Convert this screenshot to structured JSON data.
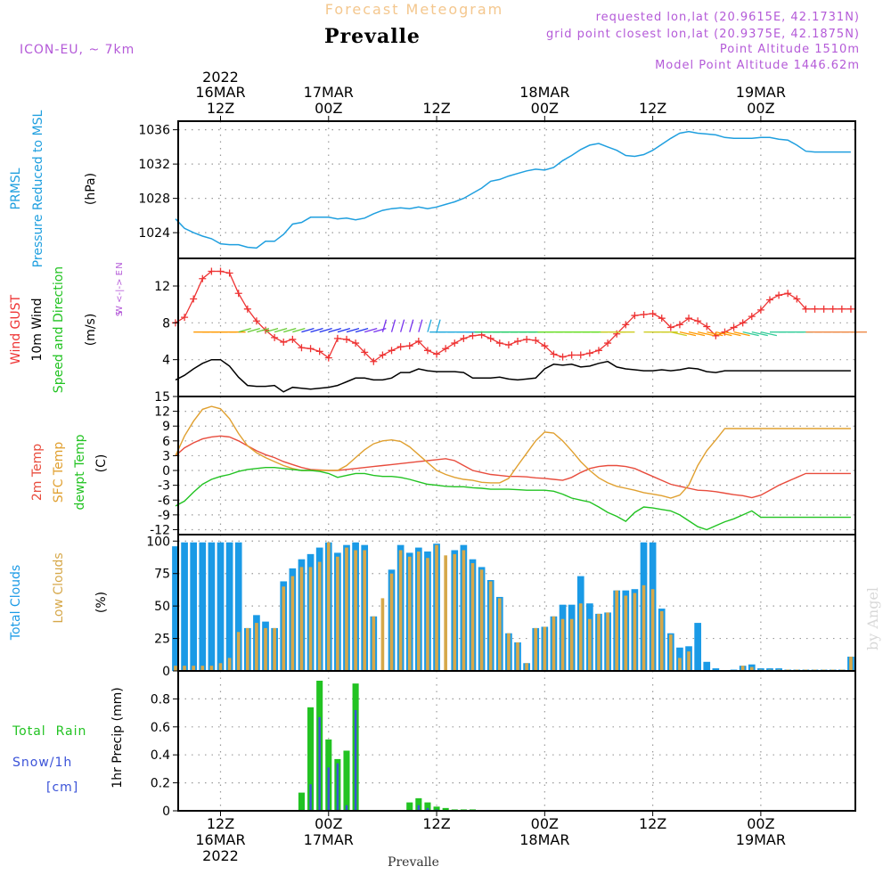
{
  "header": {
    "subtitle": "Forecast Meteogram",
    "title": "Prevalle",
    "model": "ICON-EU, ~ 7km",
    "requested": "requested lon,lat (20.9615E, 42.1731N)",
    "gridpoint": "grid point closest lon,lat (20.9375E, 42.1875N)",
    "altitude": "Point Altitude 1510m",
    "model_altitude": "Model Point Altitude 1446.62m",
    "footer": "Prevalle",
    "credit": "by Angel"
  },
  "colors": {
    "pressure": "#1f9fdf",
    "gust": "#ee3333",
    "wind": "#000000",
    "temp2m": "#e84c3d",
    "sfc": "#e0a030",
    "dewpt": "#22c322",
    "total_clouds": "#1a9ae6",
    "low_clouds": "#d6a84a",
    "rain": "#22c322",
    "snow": "#3a52d8",
    "label_purple": "#b45ad8"
  },
  "time_axis": {
    "top": [
      {
        "t": 12,
        "line1": "2022",
        "line2": "16MAR",
        "line3": "12Z"
      },
      {
        "t": 24,
        "line1": "",
        "line2": "17MAR",
        "line3": "00Z"
      },
      {
        "t": 36,
        "line1": "",
        "line2": "",
        "line3": "12Z"
      },
      {
        "t": 48,
        "line1": "",
        "line2": "18MAR",
        "line3": "00Z"
      },
      {
        "t": 60,
        "line1": "",
        "line2": "",
        "line3": "12Z"
      },
      {
        "t": 72,
        "line1": "",
        "line2": "19MAR",
        "line3": "00Z"
      }
    ],
    "bottom": [
      {
        "t": 12,
        "line1": "12Z",
        "line2": "16MAR",
        "line3": "2022"
      },
      {
        "t": 24,
        "line1": "00Z",
        "line2": "17MAR",
        "line3": ""
      },
      {
        "t": 36,
        "line1": "12Z",
        "line2": "",
        "line3": ""
      },
      {
        "t": 48,
        "line1": "00Z",
        "line2": "18MAR",
        "line3": ""
      },
      {
        "t": 60,
        "line1": "12Z",
        "line2": "",
        "line3": ""
      },
      {
        "t": 72,
        "line1": "00Z",
        "line2": "19MAR",
        "line3": ""
      }
    ]
  },
  "panel_labels": {
    "pressure": {
      "l1": "PRMSL",
      "l2": "Pressure Reduced to MSL",
      "unit": "(hPa)"
    },
    "wind": {
      "l1": "Wind GUST",
      "l2": "10m Wind",
      "l3": "Speed and Direction",
      "unit": "(m/s)",
      "compass": "W <-|-> E",
      "north": "N",
      "south": "S"
    },
    "temp": {
      "l1": "2m Temp",
      "l2": "SFC Temp",
      "l3": "dewpt Temp",
      "unit": "(C)"
    },
    "clouds": {
      "l1": "Total Clouds",
      "l2": "Low Clouds",
      "unit": "(%)"
    },
    "precip": {
      "l1": "Total  Rain",
      "l2": "Snow/1h",
      "l3": "[cm]",
      "unit": "1hr Precip (mm)"
    }
  },
  "chart_data": [
    {
      "type": "line",
      "name": "pressure",
      "ylim": [
        1021,
        1037
      ],
      "yticks": [
        1024,
        1028,
        1032,
        1036
      ],
      "x": [
        7,
        8,
        9,
        10,
        11,
        12,
        13,
        14,
        15,
        16,
        17,
        18,
        19,
        20,
        21,
        22,
        23,
        24,
        25,
        26,
        27,
        28,
        29,
        30,
        31,
        32,
        33,
        34,
        35,
        36,
        37,
        38,
        39,
        40,
        41,
        42,
        43,
        44,
        45,
        46,
        47,
        48,
        49,
        50,
        51,
        52,
        53,
        54,
        55,
        56,
        57,
        58,
        59,
        60,
        61,
        62,
        63,
        64,
        65,
        66,
        67,
        68,
        69,
        70,
        71,
        72,
        73,
        74,
        75,
        76,
        77,
        78,
        79,
        80,
        81,
        82
      ],
      "series": [
        {
          "values": [
            1025.6,
            1024.5,
            1024.0,
            1023.6,
            1023.3,
            1022.7,
            1022.6,
            1022.6,
            1022.3,
            1022.2,
            1023.0,
            1023.0,
            1023.8,
            1025.0,
            1025.2,
            1025.8,
            1025.8,
            1025.8,
            1025.6,
            1025.7,
            1025.5,
            1025.7,
            1026.2,
            1026.6,
            1026.8,
            1026.9,
            1026.8,
            1027.0,
            1026.8,
            1027.0,
            1027.3,
            1027.6,
            1028.0,
            1028.6,
            1029.2,
            1030.0,
            1030.2,
            1030.6,
            1030.9,
            1031.2,
            1031.4,
            1031.3,
            1031.6,
            1032.4,
            1033.0,
            1033.7,
            1034.2,
            1034.4,
            1034.0,
            1033.6,
            1033.0,
            1032.9,
            1033.1,
            1033.6,
            1034.3,
            1035.0,
            1035.6,
            1035.8,
            1035.6,
            1035.5,
            1035.4,
            1035.1,
            1035.0,
            1035.0,
            1035.0,
            1035.1,
            1035.1,
            1034.9,
            1034.8,
            1034.2,
            1033.5,
            1033.4,
            1033.4,
            1033.4,
            1033.4,
            1033.4
          ]
        }
      ]
    },
    {
      "type": "line",
      "name": "wind",
      "ylim": [
        0,
        15
      ],
      "yticks": [
        4,
        8,
        12
      ],
      "x": [
        7,
        8,
        9,
        10,
        11,
        12,
        13,
        14,
        15,
        16,
        17,
        18,
        19,
        20,
        21,
        22,
        23,
        24,
        25,
        26,
        27,
        28,
        29,
        30,
        31,
        32,
        33,
        34,
        35,
        36,
        37,
        38,
        39,
        40,
        41,
        42,
        43,
        44,
        45,
        46,
        47,
        48,
        49,
        50,
        51,
        52,
        53,
        54,
        55,
        56,
        57,
        58,
        59,
        60,
        61,
        62,
        63,
        64,
        65,
        66,
        67,
        68,
        69,
        70,
        71,
        72,
        73,
        74,
        75,
        76,
        77,
        78,
        79,
        80,
        81,
        82
      ],
      "series": [
        {
          "values": [
            8.0,
            8.6,
            10.6,
            12.8,
            13.6,
            13.6,
            13.4,
            11.2,
            9.5,
            8.2,
            7.2,
            6.4,
            5.9,
            6.2,
            5.3,
            5.2,
            4.9,
            4.2,
            6.3,
            6.2,
            5.8,
            4.8,
            3.8,
            4.5,
            5.0,
            5.4,
            5.5,
            6.0,
            5.0,
            4.6,
            5.2,
            5.8,
            6.3,
            6.6,
            6.7,
            6.3,
            5.8,
            5.6,
            6.0,
            6.2,
            6.1,
            5.5,
            4.6,
            4.3,
            4.5,
            4.5,
            4.7,
            5.0,
            5.8,
            6.8,
            7.8,
            8.8,
            8.9,
            9.0,
            8.5,
            7.5,
            7.8,
            8.5,
            8.2,
            7.6,
            6.6,
            7.0,
            7.5,
            8.0,
            8.7,
            9.4,
            10.5,
            11.0,
            11.2,
            10.6,
            9.5,
            9.5,
            9.5,
            9.5,
            9.5,
            9.5
          ]
        },
        {
          "values": [
            1.8,
            2.3,
            3.0,
            3.6,
            4.0,
            4.0,
            3.3,
            2.1,
            1.2,
            1.1,
            1.1,
            1.2,
            0.5,
            1.0,
            0.9,
            0.8,
            0.9,
            1.0,
            1.2,
            1.6,
            2.0,
            2.0,
            1.8,
            1.8,
            2.0,
            2.6,
            2.6,
            3.0,
            2.8,
            2.7,
            2.7,
            2.7,
            2.6,
            2.0,
            2.0,
            2.0,
            2.1,
            1.9,
            1.8,
            1.9,
            2.0,
            3.0,
            3.5,
            3.4,
            3.5,
            3.2,
            3.3,
            3.6,
            3.8,
            3.2,
            3.0,
            2.9,
            2.8,
            2.8,
            2.9,
            2.8,
            2.9,
            3.1,
            3.0,
            2.7,
            2.6,
            2.8,
            2.8,
            2.8,
            2.8,
            2.8,
            2.8,
            2.8,
            2.8,
            2.8,
            2.8,
            2.8,
            2.8,
            2.8,
            2.8,
            2.8
          ]
        }
      ]
    },
    {
      "type": "line",
      "name": "temperature",
      "ylim": [
        -13,
        15
      ],
      "yticks": [
        -12,
        -9,
        -6,
        -3,
        0,
        3,
        6,
        9,
        12,
        15
      ],
      "x": [
        7,
        8,
        9,
        10,
        11,
        12,
        13,
        14,
        15,
        16,
        17,
        18,
        19,
        20,
        21,
        22,
        23,
        24,
        25,
        26,
        27,
        28,
        29,
        30,
        31,
        32,
        33,
        34,
        35,
        36,
        37,
        38,
        39,
        40,
        41,
        42,
        43,
        44,
        45,
        46,
        47,
        48,
        49,
        50,
        51,
        52,
        53,
        54,
        55,
        56,
        57,
        58,
        59,
        60,
        61,
        62,
        63,
        64,
        65,
        66,
        67,
        68,
        69,
        70,
        71,
        72,
        73,
        74,
        75,
        76,
        77,
        78,
        79,
        80,
        81,
        82
      ],
      "series": [
        {
          "values": [
            3.0,
            4.6,
            5.6,
            6.4,
            6.8,
            7.0,
            6.8,
            6.0,
            5.0,
            4.0,
            3.2,
            2.6,
            1.8,
            1.2,
            0.6,
            0.2,
            0.1,
            0.0,
            0.0,
            0.2,
            0.4,
            0.6,
            0.8,
            1.0,
            1.2,
            1.4,
            1.6,
            1.8,
            2.0,
            2.2,
            2.4,
            2.0,
            1.0,
            0.0,
            -0.4,
            -0.8,
            -1.0,
            -1.2,
            -1.2,
            -1.3,
            -1.5,
            -1.6,
            -1.8,
            -2.0,
            -1.4,
            -0.4,
            0.4,
            0.8,
            1.0,
            1.0,
            0.8,
            0.4,
            -0.4,
            -1.2,
            -2.0,
            -2.8,
            -3.2,
            -3.6,
            -4.0,
            -4.1,
            -4.3,
            -4.6,
            -4.9,
            -5.1,
            -5.5,
            -5.0,
            -4.0,
            -3.0,
            -2.2,
            -1.4,
            -0.6,
            -0.6,
            -0.6,
            -0.6,
            -0.6,
            -0.6
          ]
        },
        {
          "values": [
            3.0,
            7.0,
            10.0,
            12.4,
            13.0,
            12.5,
            10.5,
            7.5,
            5.0,
            3.6,
            2.6,
            1.8,
            1.0,
            0.4,
            0.0,
            0.0,
            0.0,
            0.0,
            0.0,
            1.0,
            2.6,
            4.2,
            5.4,
            6.0,
            6.2,
            5.9,
            4.8,
            3.2,
            1.6,
            0.0,
            -0.8,
            -1.4,
            -1.8,
            -2.0,
            -2.4,
            -2.5,
            -2.5,
            -1.6,
            1.0,
            3.5,
            6.0,
            7.8,
            7.6,
            6.0,
            4.0,
            1.8,
            0.0,
            -1.5,
            -2.5,
            -3.2,
            -3.6,
            -4.0,
            -4.5,
            -4.8,
            -5.1,
            -5.6,
            -5.0,
            -3.0,
            1.0,
            4.0,
            6.2,
            8.5,
            8.5,
            8.5,
            8.5,
            8.5,
            8.5,
            8.5,
            8.5,
            8.5,
            8.5,
            8.5,
            8.5,
            8.5,
            8.5,
            8.5
          ]
        },
        {
          "values": [
            -7.2,
            -6.2,
            -4.4,
            -2.8,
            -1.8,
            -1.2,
            -0.8,
            -0.2,
            0.2,
            0.4,
            0.6,
            0.6,
            0.4,
            0.2,
            0.0,
            0.0,
            -0.2,
            -0.6,
            -1.4,
            -1.0,
            -0.6,
            -0.6,
            -1.0,
            -1.2,
            -1.2,
            -1.4,
            -1.8,
            -2.3,
            -2.8,
            -3.0,
            -3.2,
            -3.3,
            -3.3,
            -3.5,
            -3.6,
            -3.8,
            -3.8,
            -3.8,
            -3.9,
            -4.0,
            -4.0,
            -4.0,
            -4.2,
            -4.8,
            -5.6,
            -6.0,
            -6.4,
            -7.4,
            -8.5,
            -9.3,
            -10.3,
            -8.5,
            -7.4,
            -7.6,
            -7.9,
            -8.2,
            -9.0,
            -10.2,
            -11.4,
            -12.0,
            -11.2,
            -10.4,
            -9.8,
            -9.0,
            -8.2,
            -9.5,
            -9.5,
            -9.5,
            -9.5,
            -9.5,
            -9.5,
            -9.5,
            -9.5,
            -9.5,
            -9.5,
            -9.5
          ]
        }
      ]
    },
    {
      "type": "bar",
      "name": "clouds",
      "ylim": [
        0,
        105
      ],
      "yticks": [
        0,
        25,
        50,
        75,
        100
      ],
      "x": [
        7,
        8,
        9,
        10,
        11,
        12,
        13,
        14,
        15,
        16,
        17,
        18,
        19,
        20,
        21,
        22,
        23,
        24,
        25,
        26,
        27,
        28,
        29,
        30,
        31,
        32,
        33,
        34,
        35,
        36,
        37,
        38,
        39,
        40,
        41,
        42,
        43,
        44,
        45,
        46,
        47,
        48,
        49,
        50,
        51,
        52,
        53,
        54,
        55,
        56,
        57,
        58,
        59,
        60,
        61,
        62,
        63,
        64,
        65,
        66,
        67,
        68,
        69,
        70,
        71,
        72,
        73,
        74,
        75,
        76,
        77,
        78,
        79,
        80,
        81,
        82
      ],
      "series": [
        {
          "values": [
            96,
            99,
            99,
            99,
            99,
            99,
            99,
            99,
            33,
            43,
            38,
            33,
            69,
            79,
            86,
            90,
            95,
            99,
            91,
            97,
            99,
            97,
            42,
            0,
            78,
            97,
            91,
            95,
            92,
            98,
            0,
            93,
            97,
            86,
            80,
            70,
            57,
            29,
            22,
            6,
            33,
            34,
            42,
            51,
            51,
            73,
            52,
            44,
            45,
            62,
            62,
            63,
            99,
            99,
            48,
            29,
            18,
            19,
            37,
            7,
            2,
            0,
            1,
            4,
            5,
            2,
            2,
            2,
            1,
            1,
            1,
            1,
            1,
            1,
            1,
            11
          ]
        },
        {
          "values": [
            4,
            4,
            4,
            4,
            4,
            6,
            10,
            30,
            33,
            37,
            33,
            33,
            65,
            73,
            80,
            80,
            84,
            99,
            88,
            95,
            93,
            93,
            42,
            56,
            75,
            93,
            88,
            92,
            87,
            97,
            89,
            90,
            93,
            83,
            78,
            69,
            56,
            29,
            22,
            6,
            33,
            34,
            42,
            40,
            40,
            52,
            40,
            44,
            45,
            62,
            58,
            60,
            66,
            63,
            46,
            28,
            10,
            15,
            0,
            0,
            0,
            0,
            0,
            4,
            3,
            1,
            1,
            1,
            1,
            1,
            1,
            1,
            1,
            1,
            1,
            11
          ]
        }
      ]
    },
    {
      "type": "bar",
      "name": "precipitation",
      "ylim": [
        0,
        1.0
      ],
      "yticks": [
        0,
        0.2,
        0.4,
        0.6,
        0.8
      ],
      "x": [
        21,
        22,
        23,
        24,
        25,
        26,
        27,
        33,
        34,
        35,
        36,
        37,
        38,
        39,
        40
      ],
      "series": [
        {
          "values": [
            0.13,
            0.74,
            0.93,
            0.51,
            0.37,
            0.43,
            0.91,
            0.06,
            0.09,
            0.06,
            0.03,
            0.02,
            0.01,
            0.01,
            0.01
          ]
        },
        {
          "values": [
            0.0,
            0.19,
            0.67,
            0.31,
            0.34,
            0.04,
            0.72,
            0.0,
            0.04,
            0.02,
            0.01,
            0.0,
            0.0,
            0.0,
            0.0
          ]
        }
      ]
    }
  ]
}
